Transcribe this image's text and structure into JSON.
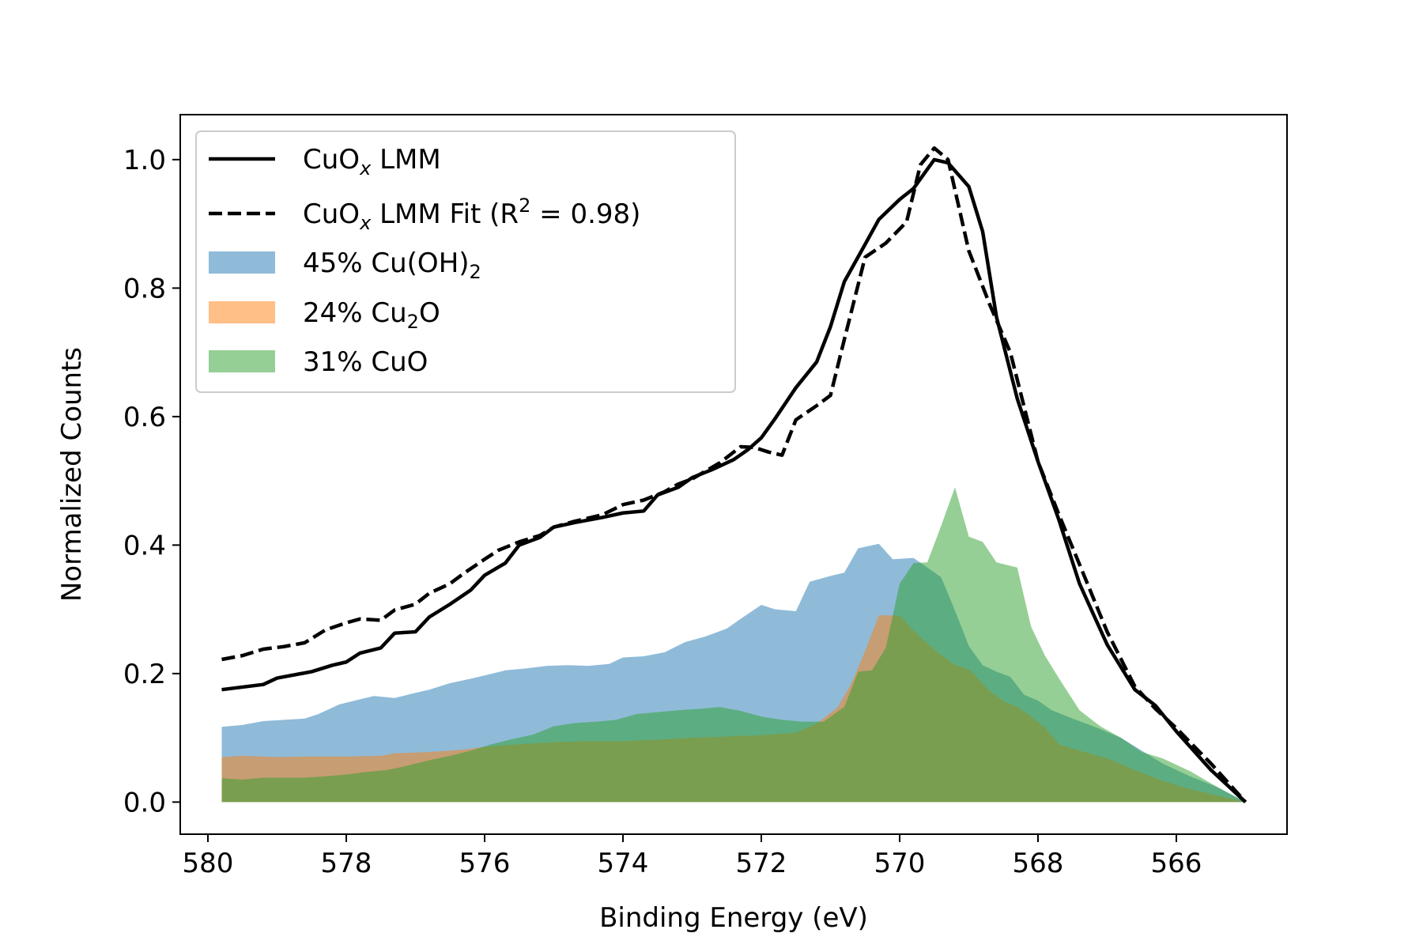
{
  "chart_data": {
    "type": "area",
    "title": "",
    "xlabel": "Binding Energy (eV)",
    "ylabel": "Normalized Counts",
    "xlim": [
      580.4,
      564.4
    ],
    "ylim": [
      -0.05,
      1.07
    ],
    "x_reversed": true,
    "grid": false,
    "legend_position": "upper left",
    "xticks": [
      580,
      578,
      576,
      574,
      572,
      570,
      568,
      566
    ],
    "yticks": [
      0.0,
      0.2,
      0.4,
      0.6,
      0.8,
      1.0
    ],
    "xtick_labels": [
      "580",
      "578",
      "576",
      "574",
      "572",
      "570",
      "568",
      "566"
    ],
    "ytick_labels": [
      "0.0",
      "0.2",
      "0.4",
      "0.6",
      "0.8",
      "1.0"
    ],
    "series": [
      {
        "name": "CuOₓ LMM",
        "legend_main": "CuO",
        "legend_sub": "x",
        "legend_rest": " LMM",
        "kind": "line",
        "style": "solid",
        "color": "#000000",
        "points": [
          [
            579.8,
            0.175
          ],
          [
            579.2,
            0.183
          ],
          [
            579.0,
            0.193
          ],
          [
            578.5,
            0.203
          ],
          [
            578.2,
            0.213
          ],
          [
            578.0,
            0.218
          ],
          [
            577.8,
            0.232
          ],
          [
            577.5,
            0.24
          ],
          [
            577.3,
            0.263
          ],
          [
            577.0,
            0.265
          ],
          [
            576.8,
            0.288
          ],
          [
            576.5,
            0.308
          ],
          [
            576.2,
            0.33
          ],
          [
            576.0,
            0.353
          ],
          [
            575.7,
            0.372
          ],
          [
            575.5,
            0.4
          ],
          [
            575.2,
            0.412
          ],
          [
            575.0,
            0.428
          ],
          [
            574.7,
            0.435
          ],
          [
            574.3,
            0.443
          ],
          [
            574.0,
            0.45
          ],
          [
            573.7,
            0.453
          ],
          [
            573.5,
            0.478
          ],
          [
            573.2,
            0.49
          ],
          [
            573.0,
            0.505
          ],
          [
            572.7,
            0.518
          ],
          [
            572.4,
            0.533
          ],
          [
            572.2,
            0.548
          ],
          [
            572.0,
            0.567
          ],
          [
            571.8,
            0.597
          ],
          [
            571.5,
            0.645
          ],
          [
            571.2,
            0.685
          ],
          [
            571.0,
            0.74
          ],
          [
            570.8,
            0.81
          ],
          [
            570.5,
            0.868
          ],
          [
            570.3,
            0.907
          ],
          [
            570.0,
            0.938
          ],
          [
            569.8,
            0.955
          ],
          [
            569.5,
            1.0
          ],
          [
            569.3,
            0.995
          ],
          [
            569.0,
            0.958
          ],
          [
            568.8,
            0.888
          ],
          [
            568.6,
            0.755
          ],
          [
            568.3,
            0.628
          ],
          [
            568.0,
            0.53
          ],
          [
            567.7,
            0.44
          ],
          [
            567.4,
            0.34
          ],
          [
            567.0,
            0.245
          ],
          [
            566.6,
            0.175
          ],
          [
            566.3,
            0.15
          ],
          [
            566.0,
            0.11
          ],
          [
            565.5,
            0.05
          ],
          [
            565.0,
            0.0
          ]
        ]
      },
      {
        "name": "CuOₓ LMM Fit (R² = 0.98)",
        "legend_main": "CuO",
        "legend_sub": "x",
        "legend_rest": " LMM Fit (R",
        "legend_sup": "2",
        "legend_tail": " = 0.98)",
        "kind": "line",
        "style": "dashed",
        "color": "#000000",
        "points": [
          [
            579.8,
            0.222
          ],
          [
            579.5,
            0.228
          ],
          [
            579.2,
            0.238
          ],
          [
            578.9,
            0.242
          ],
          [
            578.6,
            0.248
          ],
          [
            578.3,
            0.268
          ],
          [
            578.0,
            0.279
          ],
          [
            577.8,
            0.285
          ],
          [
            577.5,
            0.283
          ],
          [
            577.3,
            0.299
          ],
          [
            577.0,
            0.308
          ],
          [
            576.8,
            0.325
          ],
          [
            576.5,
            0.34
          ],
          [
            576.3,
            0.356
          ],
          [
            576.0,
            0.378
          ],
          [
            575.8,
            0.392
          ],
          [
            575.5,
            0.405
          ],
          [
            575.2,
            0.415
          ],
          [
            575.0,
            0.428
          ],
          [
            574.7,
            0.437
          ],
          [
            574.3,
            0.447
          ],
          [
            574.0,
            0.463
          ],
          [
            573.7,
            0.47
          ],
          [
            573.4,
            0.483
          ],
          [
            573.2,
            0.495
          ],
          [
            573.0,
            0.503
          ],
          [
            572.6,
            0.528
          ],
          [
            572.3,
            0.553
          ],
          [
            572.1,
            0.552
          ],
          [
            571.9,
            0.545
          ],
          [
            571.7,
            0.54
          ],
          [
            571.5,
            0.595
          ],
          [
            571.2,
            0.617
          ],
          [
            571.0,
            0.633
          ],
          [
            570.8,
            0.72
          ],
          [
            570.5,
            0.848
          ],
          [
            570.2,
            0.87
          ],
          [
            569.9,
            0.903
          ],
          [
            569.7,
            0.992
          ],
          [
            569.5,
            1.018
          ],
          [
            569.3,
            1.0
          ],
          [
            569.0,
            0.858
          ],
          [
            568.7,
            0.775
          ],
          [
            568.4,
            0.7
          ],
          [
            568.2,
            0.615
          ],
          [
            568.0,
            0.53
          ],
          [
            567.7,
            0.448
          ],
          [
            567.4,
            0.37
          ],
          [
            567.0,
            0.265
          ],
          [
            566.6,
            0.18
          ],
          [
            566.3,
            0.145
          ],
          [
            566.0,
            0.115
          ],
          [
            565.5,
            0.06
          ],
          [
            565.0,
            0.0
          ]
        ]
      },
      {
        "name": "45% Cu(OH)₂",
        "legend_main": "45% Cu(OH)",
        "legend_sub": "2",
        "legend_rest": "",
        "kind": "area",
        "color": "#1f77b4",
        "opacity": 0.5,
        "points": [
          [
            579.8,
            0.117
          ],
          [
            579.5,
            0.12
          ],
          [
            579.2,
            0.126
          ],
          [
            578.9,
            0.128
          ],
          [
            578.6,
            0.13
          ],
          [
            578.4,
            0.137
          ],
          [
            578.1,
            0.152
          ],
          [
            577.8,
            0.16
          ],
          [
            577.6,
            0.165
          ],
          [
            577.3,
            0.162
          ],
          [
            577.0,
            0.17
          ],
          [
            576.8,
            0.175
          ],
          [
            576.5,
            0.185
          ],
          [
            576.2,
            0.192
          ],
          [
            576.0,
            0.197
          ],
          [
            575.7,
            0.205
          ],
          [
            575.4,
            0.208
          ],
          [
            575.1,
            0.212
          ],
          [
            574.8,
            0.213
          ],
          [
            574.5,
            0.212
          ],
          [
            574.2,
            0.215
          ],
          [
            574.0,
            0.225
          ],
          [
            573.7,
            0.227
          ],
          [
            573.4,
            0.233
          ],
          [
            573.1,
            0.249
          ],
          [
            572.8,
            0.258
          ],
          [
            572.5,
            0.27
          ],
          [
            572.3,
            0.285
          ],
          [
            572.0,
            0.307
          ],
          [
            571.8,
            0.3
          ],
          [
            571.5,
            0.297
          ],
          [
            571.3,
            0.343
          ],
          [
            571.0,
            0.352
          ],
          [
            570.8,
            0.357
          ],
          [
            570.6,
            0.395
          ],
          [
            570.3,
            0.402
          ],
          [
            570.1,
            0.378
          ],
          [
            569.8,
            0.38
          ],
          [
            569.6,
            0.365
          ],
          [
            569.4,
            0.35
          ],
          [
            569.2,
            0.298
          ],
          [
            569.0,
            0.243
          ],
          [
            568.8,
            0.213
          ],
          [
            568.6,
            0.203
          ],
          [
            568.4,
            0.195
          ],
          [
            568.2,
            0.167
          ],
          [
            568.0,
            0.158
          ],
          [
            567.8,
            0.143
          ],
          [
            567.5,
            0.13
          ],
          [
            567.2,
            0.118
          ],
          [
            566.8,
            0.1
          ],
          [
            566.5,
            0.08
          ],
          [
            566.2,
            0.06
          ],
          [
            565.8,
            0.04
          ],
          [
            565.4,
            0.023
          ],
          [
            565.0,
            0.0
          ]
        ]
      },
      {
        "name": "24% Cu₂O",
        "legend_main": "24% Cu",
        "legend_sub": "2",
        "legend_rest": "O",
        "kind": "area",
        "color": "#ff7f0e",
        "opacity": 0.5,
        "points": [
          [
            579.8,
            0.07
          ],
          [
            579.5,
            0.072
          ],
          [
            579.0,
            0.07
          ],
          [
            578.5,
            0.071
          ],
          [
            578.0,
            0.071
          ],
          [
            577.5,
            0.072
          ],
          [
            577.3,
            0.076
          ],
          [
            577.0,
            0.077
          ],
          [
            576.8,
            0.078
          ],
          [
            576.5,
            0.08
          ],
          [
            576.2,
            0.083
          ],
          [
            576.0,
            0.086
          ],
          [
            575.5,
            0.09
          ],
          [
            575.0,
            0.093
          ],
          [
            574.5,
            0.095
          ],
          [
            574.0,
            0.095
          ],
          [
            573.5,
            0.097
          ],
          [
            573.0,
            0.1
          ],
          [
            572.5,
            0.102
          ],
          [
            572.0,
            0.104
          ],
          [
            571.5,
            0.108
          ],
          [
            571.2,
            0.122
          ],
          [
            570.9,
            0.147
          ],
          [
            570.7,
            0.184
          ],
          [
            570.5,
            0.235
          ],
          [
            570.3,
            0.291
          ],
          [
            570.0,
            0.29
          ],
          [
            569.8,
            0.267
          ],
          [
            569.5,
            0.237
          ],
          [
            569.2,
            0.213
          ],
          [
            569.0,
            0.207
          ],
          [
            568.7,
            0.173
          ],
          [
            568.5,
            0.157
          ],
          [
            568.3,
            0.148
          ],
          [
            568.1,
            0.133
          ],
          [
            567.9,
            0.116
          ],
          [
            567.7,
            0.09
          ],
          [
            567.4,
            0.08
          ],
          [
            567.0,
            0.068
          ],
          [
            566.6,
            0.05
          ],
          [
            566.2,
            0.033
          ],
          [
            565.8,
            0.02
          ],
          [
            565.4,
            0.01
          ],
          [
            565.0,
            0.0
          ]
        ]
      },
      {
        "name": "31% CuO",
        "legend_main": "31% CuO",
        "legend_sub": "",
        "legend_rest": "",
        "kind": "area",
        "color": "#2ca02c",
        "opacity": 0.5,
        "points": [
          [
            579.8,
            0.037
          ],
          [
            579.5,
            0.035
          ],
          [
            579.2,
            0.038
          ],
          [
            578.9,
            0.038
          ],
          [
            578.6,
            0.038
          ],
          [
            578.3,
            0.04
          ],
          [
            578.0,
            0.043
          ],
          [
            577.7,
            0.047
          ],
          [
            577.4,
            0.05
          ],
          [
            577.1,
            0.057
          ],
          [
            576.8,
            0.065
          ],
          [
            576.5,
            0.072
          ],
          [
            576.2,
            0.08
          ],
          [
            575.9,
            0.09
          ],
          [
            575.6,
            0.098
          ],
          [
            575.3,
            0.105
          ],
          [
            575.0,
            0.118
          ],
          [
            574.7,
            0.123
          ],
          [
            574.4,
            0.125
          ],
          [
            574.1,
            0.128
          ],
          [
            573.8,
            0.137
          ],
          [
            573.5,
            0.14
          ],
          [
            573.2,
            0.143
          ],
          [
            572.9,
            0.145
          ],
          [
            572.6,
            0.148
          ],
          [
            572.3,
            0.142
          ],
          [
            572.0,
            0.133
          ],
          [
            571.7,
            0.128
          ],
          [
            571.4,
            0.125
          ],
          [
            571.1,
            0.125
          ],
          [
            570.8,
            0.148
          ],
          [
            570.6,
            0.203
          ],
          [
            570.4,
            0.205
          ],
          [
            570.2,
            0.24
          ],
          [
            570.0,
            0.34
          ],
          [
            569.8,
            0.372
          ],
          [
            569.6,
            0.373
          ],
          [
            569.4,
            0.43
          ],
          [
            569.2,
            0.49
          ],
          [
            569.0,
            0.413
          ],
          [
            568.8,
            0.405
          ],
          [
            568.6,
            0.373
          ],
          [
            568.3,
            0.365
          ],
          [
            568.1,
            0.273
          ],
          [
            567.9,
            0.228
          ],
          [
            567.7,
            0.193
          ],
          [
            567.4,
            0.143
          ],
          [
            567.1,
            0.118
          ],
          [
            566.8,
            0.1
          ],
          [
            566.5,
            0.078
          ],
          [
            566.2,
            0.068
          ],
          [
            565.8,
            0.048
          ],
          [
            565.4,
            0.023
          ],
          [
            565.0,
            0.0
          ]
        ]
      }
    ]
  }
}
